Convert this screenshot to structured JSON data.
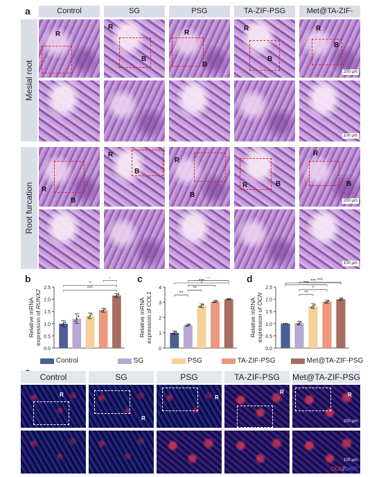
{
  "panels": {
    "a": "a",
    "b": "b",
    "c": "c",
    "d": "d",
    "e": "e"
  },
  "a": {
    "columns": [
      "Control",
      "SG",
      "PSG",
      "TA-ZIF-PSG",
      "Met@TA-ZIF-PSG"
    ],
    "row_labels": [
      "Mesial root",
      "Root furcation"
    ],
    "markers": {
      "R": "R",
      "B": "B"
    },
    "scale_low": "200 μm",
    "scale_high": "100 μm"
  },
  "e": {
    "columns": [
      "Control",
      "SG",
      "PSG",
      "TA-ZIF-PSG",
      "Met@TA-ZIF-PSG"
    ],
    "marker_R": "R",
    "scale_low": "200 μm",
    "scale_high": "100 μm",
    "stain_ocn": "OCN",
    "stain_sep": "/",
    "stain_dapi": "DAPI"
  },
  "legend": [
    "Control",
    "SG",
    "PSG",
    "TA-ZIF-PSG",
    "Met@TA-ZIF-PSG"
  ],
  "colors": {
    "Control": "#4a5f96",
    "SG": "#b7a8d4",
    "PSG": "#f7cf98",
    "TA-ZIF-PSG": "#eb987c",
    "Met@TA-ZIF-PSG": "#a66d61",
    "dashed_box": "#e02020",
    "header_bg": "#d9dde6"
  },
  "chart_data": [
    {
      "type": "bar",
      "ylabel_line1": "Relative mRNA",
      "ylabel_line2": "expression of ",
      "gene": "RUNX2",
      "categories": [
        "Control",
        "SG",
        "PSG",
        "TA-ZIF-PSG",
        "Met@TA-ZIF-PSG"
      ],
      "values": [
        1.0,
        1.2,
        1.32,
        1.55,
        2.15
      ],
      "errors": [
        0.12,
        0.2,
        0.12,
        0.08,
        0.08
      ],
      "ylim": [
        0,
        2.5
      ],
      "yticks": [
        0.0,
        0.5,
        1.0,
        1.5,
        2.0,
        2.5
      ],
      "tick_labels": [
        "0.0",
        "0.5",
        "1.0",
        "1.5",
        "2.0",
        "2.5"
      ],
      "significance": [
        {
          "from": 0,
          "to": 4,
          "label": "***"
        },
        {
          "from": 0,
          "to": 4,
          "label": "*"
        },
        {
          "from": 3,
          "to": 4,
          "label": "*"
        }
      ]
    },
    {
      "type": "bar",
      "ylabel_line1": "Relative mRNA",
      "ylabel_line2": "expression of ",
      "gene": "COL1",
      "categories": [
        "Control",
        "SG",
        "PSG",
        "TA-ZIF-PSG",
        "Met@TA-ZIF-PSG"
      ],
      "values": [
        1.0,
        1.5,
        2.78,
        3.05,
        3.2
      ],
      "errors": [
        0.12,
        0.08,
        0.12,
        0.08,
        0.04
      ],
      "ylim": [
        0,
        4
      ],
      "yticks": [
        0,
        1,
        2,
        3,
        4
      ],
      "tick_labels": [
        "0",
        "1",
        "2",
        "3",
        "4"
      ],
      "significance": [
        {
          "from": 0,
          "to": 1,
          "label": "**"
        },
        {
          "from": 1,
          "to": 2,
          "label": "**"
        },
        {
          "from": 1,
          "to": 3,
          "label": "*"
        },
        {
          "from": 1,
          "to": 4,
          "label": "***"
        },
        {
          "from": 0,
          "to": 4,
          "label": "***"
        }
      ]
    },
    {
      "type": "bar",
      "ylabel_line1": "Relative mRNA",
      "ylabel_line2": "expression of ",
      "gene": "OCN",
      "categories": [
        "Control",
        "SG",
        "PSG",
        "TA-ZIF-PSG",
        "Met@TA-ZIF-PSG"
      ],
      "values": [
        1.0,
        1.02,
        1.72,
        1.9,
        2.0
      ],
      "errors": [
        0.0,
        0.08,
        0.1,
        0.06,
        0.05
      ],
      "ylim": [
        0,
        2.5
      ],
      "yticks": [
        0.0,
        0.5,
        1.0,
        1.5,
        2.0,
        2.5
      ],
      "tick_labels": [
        "0.0",
        "0.5",
        "1.0",
        "1.5",
        "2.0",
        "2.5"
      ],
      "significance": [
        {
          "from": 1,
          "to": 2,
          "label": "**"
        },
        {
          "from": 1,
          "to": 3,
          "label": "*"
        },
        {
          "from": 0,
          "to": 3,
          "label": "***"
        },
        {
          "from": 1,
          "to": 4,
          "label": "***"
        },
        {
          "from": 0,
          "to": 4,
          "label": "***"
        }
      ]
    }
  ]
}
